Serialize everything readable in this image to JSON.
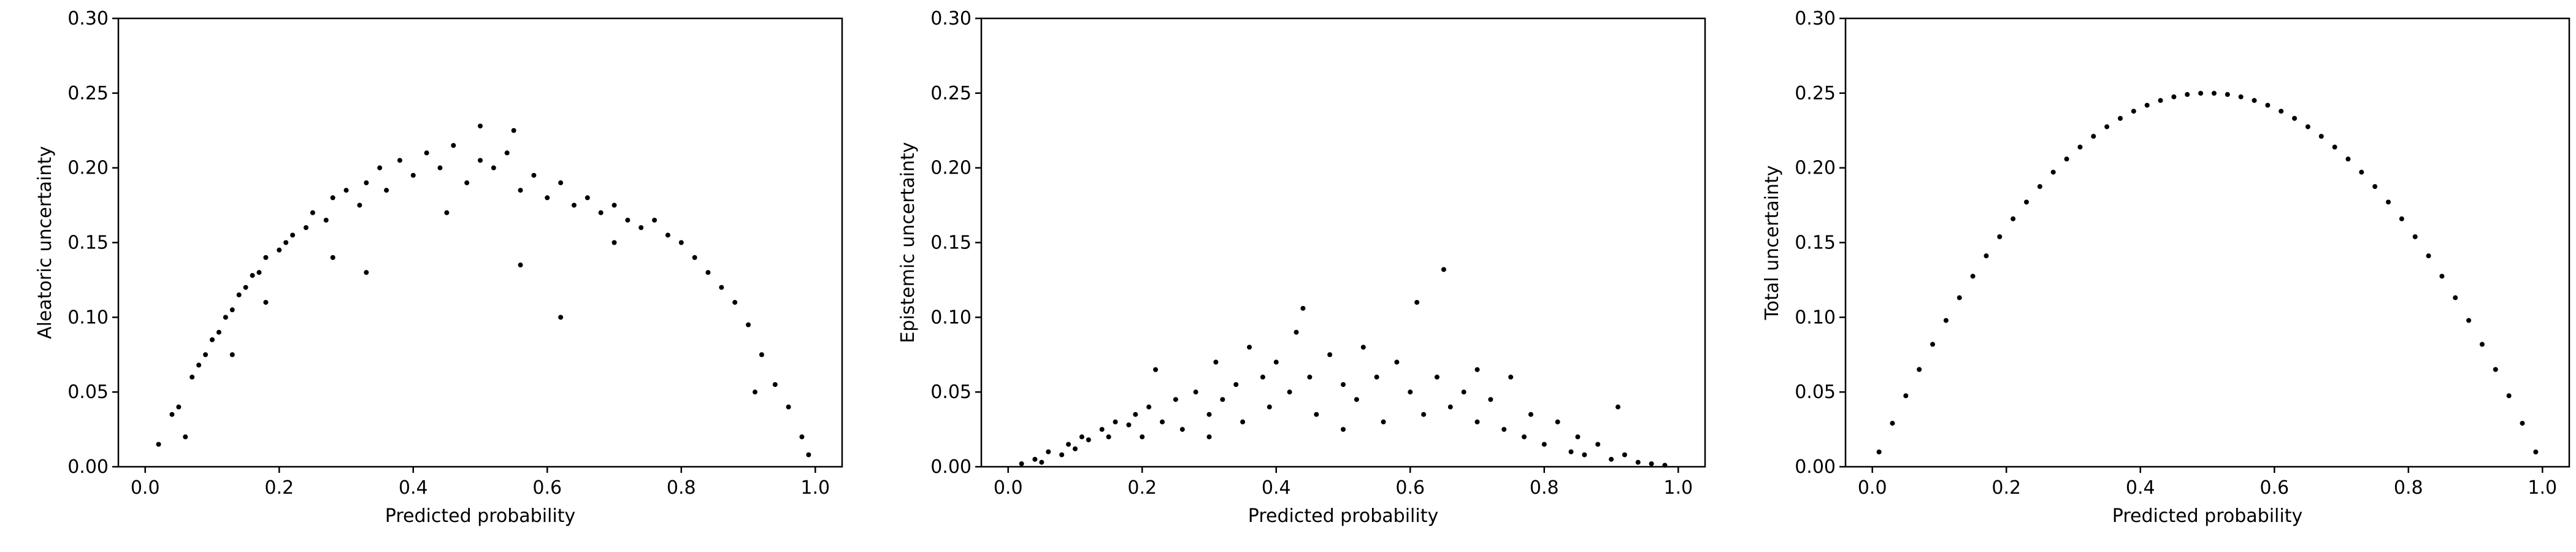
{
  "chart_data": [
    {
      "type": "scatter",
      "xlabel": "Predicted probability",
      "ylabel": "Aleatoric uncertainty",
      "color": "#000000",
      "xlim": [
        -0.04,
        1.04
      ],
      "ylim": [
        0,
        0.3
      ],
      "xticks": [
        {
          "value": 0,
          "label": "0.0"
        },
        0.2,
        0.4,
        0.6,
        0.8,
        {
          "value": 1,
          "label": "1.0"
        }
      ],
      "yticks": [
        {
          "value": 0,
          "label": "0.00"
        },
        0.05,
        {
          "value": 0.1,
          "label": "0.10"
        },
        0.15,
        {
          "value": 0.2,
          "label": "0.20"
        },
        0.25,
        {
          "value": 0.3,
          "label": "0.30"
        }
      ],
      "x": [
        0.02,
        0.04,
        0.05,
        0.07,
        0.08,
        0.09,
        0.1,
        0.11,
        0.12,
        0.13,
        0.14,
        0.15,
        0.16,
        0.17,
        0.18,
        0.2,
        0.21,
        0.22,
        0.24,
        0.25,
        0.27,
        0.28,
        0.3,
        0.32,
        0.33,
        0.35,
        0.36,
        0.38,
        0.4,
        0.42,
        0.44,
        0.46,
        0.48,
        0.5,
        0.52,
        0.54,
        0.56,
        0.58,
        0.6,
        0.62,
        0.64,
        0.66,
        0.68,
        0.7,
        0.72,
        0.74,
        0.76,
        0.78,
        0.8,
        0.82,
        0.84,
        0.86,
        0.88,
        0.9,
        0.92,
        0.94,
        0.96,
        0.98,
        0.99,
        0.13,
        0.33,
        0.56,
        0.62,
        0.91,
        0.06,
        0.18,
        0.28,
        0.45,
        0.7,
        0.5,
        0.55
      ],
      "y": [
        0.015,
        0.035,
        0.04,
        0.06,
        0.068,
        0.075,
        0.085,
        0.09,
        0.1,
        0.105,
        0.115,
        0.12,
        0.128,
        0.13,
        0.14,
        0.145,
        0.15,
        0.155,
        0.16,
        0.17,
        0.165,
        0.18,
        0.185,
        0.175,
        0.19,
        0.2,
        0.185,
        0.205,
        0.195,
        0.21,
        0.2,
        0.215,
        0.19,
        0.205,
        0.2,
        0.21,
        0.185,
        0.195,
        0.18,
        0.19,
        0.175,
        0.18,
        0.17,
        0.175,
        0.165,
        0.16,
        0.165,
        0.155,
        0.15,
        0.14,
        0.13,
        0.12,
        0.11,
        0.095,
        0.075,
        0.055,
        0.04,
        0.02,
        0.008,
        0.075,
        0.13,
        0.135,
        0.1,
        0.05,
        0.02,
        0.11,
        0.14,
        0.17,
        0.15,
        0.228,
        0.225
      ]
    },
    {
      "type": "scatter",
      "xlabel": "Predicted probability",
      "ylabel": "Epistemic uncertainty",
      "color": "#000000",
      "xlim": [
        -0.04,
        1.04
      ],
      "ylim": [
        0,
        0.3
      ],
      "xticks": [
        {
          "value": 0,
          "label": "0.0"
        },
        0.2,
        0.4,
        0.6,
        0.8,
        {
          "value": 1,
          "label": "1.0"
        }
      ],
      "yticks": [
        {
          "value": 0,
          "label": "0.00"
        },
        0.05,
        {
          "value": 0.1,
          "label": "0.10"
        },
        0.15,
        {
          "value": 0.2,
          "label": "0.20"
        },
        0.25,
        {
          "value": 0.3,
          "label": "0.30"
        }
      ],
      "x": [
        0.02,
        0.04,
        0.05,
        0.06,
        0.08,
        0.09,
        0.1,
        0.11,
        0.12,
        0.14,
        0.15,
        0.16,
        0.18,
        0.19,
        0.2,
        0.21,
        0.22,
        0.23,
        0.25,
        0.26,
        0.28,
        0.3,
        0.31,
        0.32,
        0.34,
        0.35,
        0.36,
        0.38,
        0.39,
        0.4,
        0.42,
        0.43,
        0.44,
        0.45,
        0.46,
        0.48,
        0.5,
        0.52,
        0.53,
        0.55,
        0.56,
        0.58,
        0.6,
        0.61,
        0.62,
        0.64,
        0.65,
        0.66,
        0.68,
        0.7,
        0.72,
        0.74,
        0.75,
        0.77,
        0.78,
        0.8,
        0.82,
        0.84,
        0.85,
        0.86,
        0.88,
        0.9,
        0.91,
        0.92,
        0.94,
        0.96,
        0.98,
        0.3,
        0.5,
        0.7
      ],
      "y": [
        0.002,
        0.005,
        0.003,
        0.01,
        0.008,
        0.015,
        0.012,
        0.02,
        0.018,
        0.025,
        0.02,
        0.03,
        0.028,
        0.035,
        0.02,
        0.04,
        0.065,
        0.03,
        0.045,
        0.025,
        0.05,
        0.035,
        0.07,
        0.045,
        0.055,
        0.03,
        0.08,
        0.06,
        0.04,
        0.07,
        0.05,
        0.09,
        0.106,
        0.06,
        0.035,
        0.075,
        0.055,
        0.045,
        0.08,
        0.06,
        0.03,
        0.07,
        0.05,
        0.11,
        0.035,
        0.06,
        0.132,
        0.04,
        0.05,
        0.03,
        0.045,
        0.025,
        0.06,
        0.02,
        0.035,
        0.015,
        0.03,
        0.01,
        0.02,
        0.008,
        0.015,
        0.005,
        0.04,
        0.008,
        0.003,
        0.002,
        0.001,
        0.02,
        0.025,
        0.065
      ]
    },
    {
      "type": "scatter",
      "xlabel": "Predicted probability",
      "ylabel": "Total uncertainty",
      "color": "#000000",
      "xlim": [
        -0.04,
        1.04
      ],
      "ylim": [
        0,
        0.3
      ],
      "xticks": [
        {
          "value": 0,
          "label": "0.0"
        },
        0.2,
        0.4,
        0.6,
        0.8,
        {
          "value": 1,
          "label": "1.0"
        }
      ],
      "yticks": [
        {
          "value": 0,
          "label": "0.00"
        },
        0.05,
        {
          "value": 0.1,
          "label": "0.10"
        },
        0.15,
        {
          "value": 0.2,
          "label": "0.20"
        },
        0.25,
        {
          "value": 0.3,
          "label": "0.30"
        }
      ],
      "x": [
        0.01,
        0.03,
        0.05,
        0.07,
        0.09,
        0.11,
        0.13,
        0.15,
        0.17,
        0.19,
        0.21,
        0.23,
        0.25,
        0.27,
        0.29,
        0.31,
        0.33,
        0.35,
        0.37,
        0.39,
        0.41,
        0.43,
        0.45,
        0.47,
        0.49,
        0.51,
        0.53,
        0.55,
        0.57,
        0.59,
        0.61,
        0.63,
        0.65,
        0.67,
        0.69,
        0.71,
        0.73,
        0.75,
        0.77,
        0.79,
        0.81,
        0.83,
        0.85,
        0.87,
        0.89,
        0.91,
        0.93,
        0.95,
        0.97,
        0.99
      ],
      "y": [
        0.0099,
        0.0291,
        0.0475,
        0.0651,
        0.0819,
        0.0979,
        0.1131,
        0.1275,
        0.1411,
        0.1539,
        0.1659,
        0.1771,
        0.1875,
        0.1971,
        0.2059,
        0.2139,
        0.2211,
        0.2275,
        0.2331,
        0.2379,
        0.2419,
        0.2451,
        0.2475,
        0.2491,
        0.2499,
        0.2499,
        0.2491,
        0.2475,
        0.2451,
        0.2419,
        0.2379,
        0.2331,
        0.2275,
        0.2211,
        0.2139,
        0.2059,
        0.1971,
        0.1875,
        0.1771,
        0.1659,
        0.1539,
        0.1411,
        0.1275,
        0.1131,
        0.0979,
        0.0819,
        0.0651,
        0.0475,
        0.0291,
        0.0099
      ]
    }
  ]
}
